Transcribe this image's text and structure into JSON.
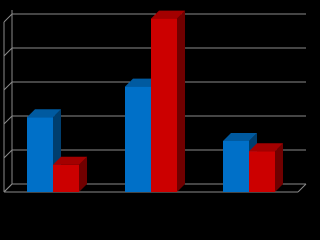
{
  "chart_data": {
    "type": "bar3d",
    "categories": [
      null,
      null,
      null
    ],
    "series": [
      {
        "color": "#0070c8",
        "values": [
          2.2,
          3.1,
          1.5
        ]
      },
      {
        "color": "#cc0000",
        "values": [
          0.8,
          5.1,
          1.2
        ]
      }
    ],
    "ylim": [
      0,
      5
    ],
    "yticks": [
      0,
      1,
      2,
      3,
      4,
      5
    ],
    "grid": true
  }
}
